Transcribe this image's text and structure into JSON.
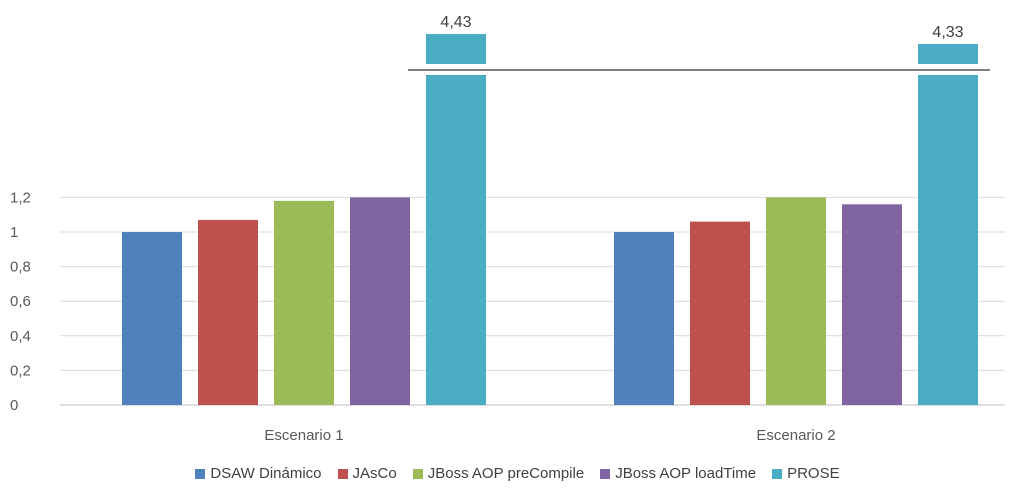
{
  "chart_data": {
    "type": "bar",
    "title": "",
    "xlabel": "",
    "ylabel": "",
    "categories": [
      "Escenario 1",
      "Escenario 2"
    ],
    "series": [
      {
        "name": "DSAW Dinámico",
        "values": [
          1.0,
          1.0
        ],
        "color": "#4F81BD"
      },
      {
        "name": "JAsCo",
        "values": [
          1.07,
          1.06
        ],
        "color": "#C0504D"
      },
      {
        "name": "JBoss AOP preCompile",
        "values": [
          1.18,
          1.2
        ],
        "color": "#9BBB59"
      },
      {
        "name": "JBoss AOP loadTime",
        "values": [
          1.2,
          1.16
        ],
        "color": "#8064A2"
      },
      {
        "name": "PROSE",
        "values": [
          4.43,
          4.33
        ],
        "color": "#4BACC6"
      }
    ],
    "data_labels": [
      "",
      "",
      "",
      "",
      "4,43",
      "",
      "",
      "",
      "",
      "4,33"
    ],
    "yticks": [
      "0",
      "0,2",
      "0,4",
      "0,6",
      "0,8",
      "1",
      "1,2"
    ],
    "ylim": [
      0,
      1.2
    ],
    "axis_break": true,
    "grid": true,
    "legend_position": "bottom"
  }
}
